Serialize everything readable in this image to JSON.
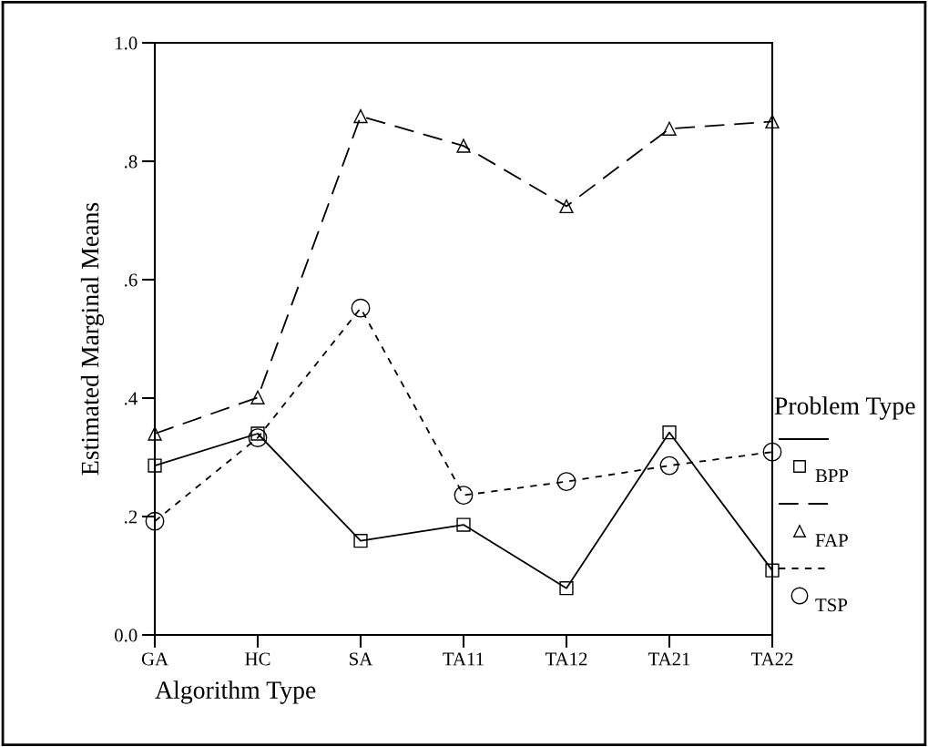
{
  "chart_data": {
    "type": "line",
    "xlabel": "Algorithm Type",
    "ylabel": "Estimated Marginal Means",
    "legend_title": "Problem Type",
    "categories": [
      "GA",
      "HC",
      "SA",
      "TA11",
      "TA12",
      "TA21",
      "TA22"
    ],
    "series": [
      {
        "name": "BPP",
        "color": "#000000",
        "marker": "square",
        "line_style": "solid",
        "values": [
          0.286,
          0.34,
          0.159,
          0.186,
          0.079,
          0.342,
          0.109
        ]
      },
      {
        "name": "FAP",
        "color": "#000000",
        "marker": "triangle",
        "line_style": "dashed",
        "values": [
          0.34,
          0.401,
          0.876,
          0.826,
          0.724,
          0.855,
          0.867
        ]
      },
      {
        "name": "TSP",
        "color": "#000000",
        "marker": "circle",
        "line_style": "dotted",
        "values": [
          0.192,
          0.333,
          0.552,
          0.236,
          0.259,
          0.286,
          0.309
        ]
      }
    ],
    "ylim": [
      0,
      1
    ],
    "yticks": [
      {
        "value": 0,
        "label": "0.0"
      },
      {
        "value": 0.2,
        "label": ".2"
      },
      {
        "value": 0.4,
        "label": ".4"
      },
      {
        "value": 0.6,
        "label": ".6"
      },
      {
        "value": 0.8,
        "label": ".8"
      },
      {
        "value": 1,
        "label": "1.0"
      }
    ],
    "grid": false,
    "legend": "right"
  }
}
